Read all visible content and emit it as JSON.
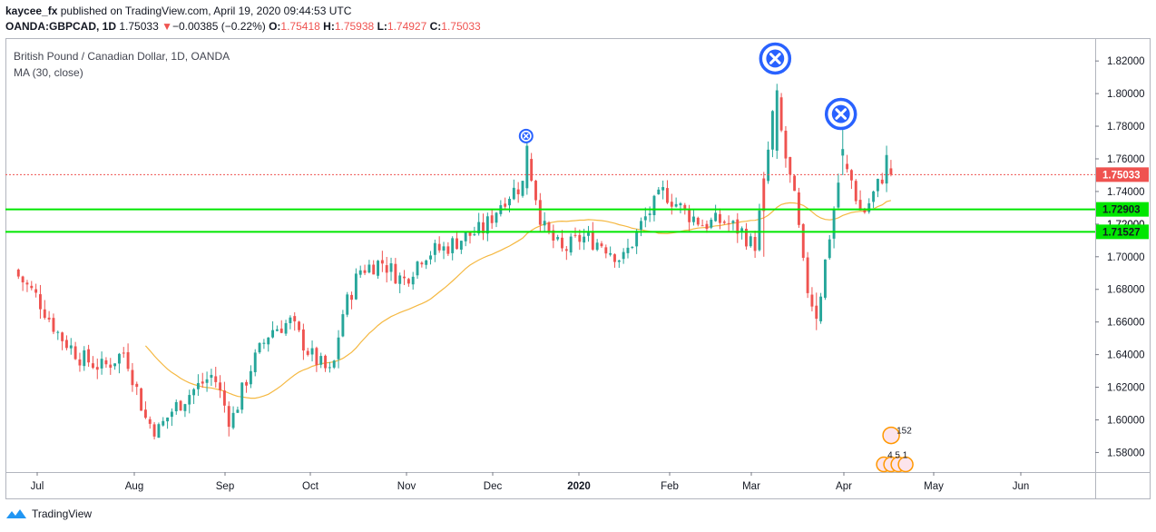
{
  "header": {
    "author": "kaycee_fx",
    "published_text": "published on TradingView.com, April 19, 2020 09:44:53 UTC",
    "symbol": "OANDA:GBPCAD, 1D",
    "last_price": "1.75033",
    "change_arrow": "▼",
    "change": "−0.00385 (−0.22%)",
    "o_label": "O:",
    "o_value": "1.75418",
    "h_label": "H:",
    "h_value": "1.75938",
    "l_label": "L:",
    "l_value": "1.74927",
    "c_label": "C:",
    "c_value": "1.75033"
  },
  "legend": {
    "title": "British Pound / Canadian Dollar, 1D, OANDA",
    "indicator": "MA (30, close)"
  },
  "footer": {
    "brand": "TradingView",
    "logo_icon": "tradingview-logo-icon"
  },
  "colors": {
    "up": "#26a69a",
    "down": "#ef5350",
    "ma": "#f5b841",
    "support": "#00e600",
    "marker": "#2962ff",
    "price_line": "#ef5350"
  },
  "chart_data": {
    "type": "candlestick",
    "symbol": "OANDA:GBPCAD",
    "timeframe": "1D",
    "ylim": [
      1.568,
      1.834
    ],
    "yticks": [
      1.58,
      1.6,
      1.62,
      1.64,
      1.66,
      1.68,
      1.7,
      1.72,
      1.74,
      1.76,
      1.78,
      1.8,
      1.82
    ],
    "ytick_labels": [
      "1.58000",
      "1.60000",
      "1.62000",
      "1.64000",
      "1.66000",
      "1.68000",
      "1.70000",
      "1.72000",
      "1.74000",
      "1.76000",
      "1.78000",
      "1.80000",
      "1.82000"
    ],
    "xtick_labels": [
      {
        "label": "Jul",
        "bold": false
      },
      {
        "label": "Aug",
        "bold": false
      },
      {
        "label": "Sep",
        "bold": false
      },
      {
        "label": "Oct",
        "bold": false
      },
      {
        "label": "Nov",
        "bold": false
      },
      {
        "label": "Dec",
        "bold": false
      },
      {
        "label": "2020",
        "bold": true
      },
      {
        "label": "Feb",
        "bold": false
      },
      {
        "label": "Mar",
        "bold": false
      },
      {
        "label": "Apr",
        "bold": false
      },
      {
        "label": "May",
        "bold": false
      },
      {
        "label": "Jun",
        "bold": false
      }
    ],
    "current_price": {
      "value": 1.75033,
      "label": "1.75033"
    },
    "horizontal_levels": [
      {
        "value": 1.72903,
        "label": "1.72903"
      },
      {
        "value": 1.71527,
        "label": "1.71527"
      }
    ],
    "hidden_axis_label": "1.72000",
    "markers": [
      {
        "type": "x-circle",
        "month": "Dec",
        "value": 1.774,
        "size": "small"
      },
      {
        "type": "x-circle",
        "month": "Mar",
        "value": 1.8215,
        "size": "large"
      },
      {
        "type": "x-circle",
        "month": "Apr",
        "value": 1.7875,
        "size": "large"
      }
    ],
    "event_badges": [
      "152",
      "4 5 1"
    ],
    "ma": {
      "name": "MA (30, close)",
      "period": 30
    },
    "closes_approx": {
      "points": [
        [
          "Jun 25",
          1.688
        ],
        [
          "Jul 1",
          1.675
        ],
        [
          "Jul 8",
          1.652
        ],
        [
          "Jul 15",
          1.638
        ],
        [
          "Jul 22",
          1.632
        ],
        [
          "Jul 29",
          1.642
        ],
        [
          "Aug 5",
          1.6
        ],
        [
          "Aug 9",
          1.593
        ],
        [
          "Aug 14",
          1.606
        ],
        [
          "Aug 21",
          1.618
        ],
        [
          "Aug 28",
          1.628
        ],
        [
          "Sep 3",
          1.598
        ],
        [
          "Sep 10",
          1.632
        ],
        [
          "Sep 17",
          1.655
        ],
        [
          "Sep 24",
          1.66
        ],
        [
          "Oct 1",
          1.64
        ],
        [
          "Oct 8",
          1.627
        ],
        [
          "Oct 11",
          1.663
        ],
        [
          "Oct 17",
          1.692
        ],
        [
          "Oct 24",
          1.697
        ],
        [
          "Oct 31",
          1.685
        ],
        [
          "Nov 7",
          1.702
        ],
        [
          "Nov 14",
          1.705
        ],
        [
          "Nov 21",
          1.712
        ],
        [
          "Nov 28",
          1.717
        ],
        [
          "Dec 5",
          1.736
        ],
        [
          "Dec 12",
          1.745
        ],
        [
          "Dec 13",
          1.765
        ],
        [
          "Dec 19",
          1.718
        ],
        [
          "Dec 26",
          1.703
        ],
        [
          "Jan 2",
          1.712
        ],
        [
          "Jan 9",
          1.708
        ],
        [
          "Jan 16",
          1.698
        ],
        [
          "Jan 23",
          1.722
        ],
        [
          "Jan 30",
          1.74
        ],
        [
          "Feb 6",
          1.728
        ],
        [
          "Feb 13",
          1.72
        ],
        [
          "Feb 20",
          1.722
        ],
        [
          "Feb 27",
          1.715
        ],
        [
          "Mar 2",
          1.705
        ],
        [
          "Mar 5",
          1.74
        ],
        [
          "Mar 9",
          1.8
        ],
        [
          "Mar 12",
          1.765
        ],
        [
          "Mar 16",
          1.73
        ],
        [
          "Mar 19",
          1.685
        ],
        [
          "Mar 23",
          1.663
        ],
        [
          "Mar 26",
          1.7
        ],
        [
          "Mar 31",
          1.755
        ],
        [
          "Apr 3",
          1.75
        ],
        [
          "Apr 7",
          1.725
        ],
        [
          "Apr 10",
          1.735
        ],
        [
          "Apr 14",
          1.75
        ],
        [
          "Apr 16",
          1.765
        ],
        [
          "Apr 17",
          1.75
        ]
      ]
    }
  }
}
